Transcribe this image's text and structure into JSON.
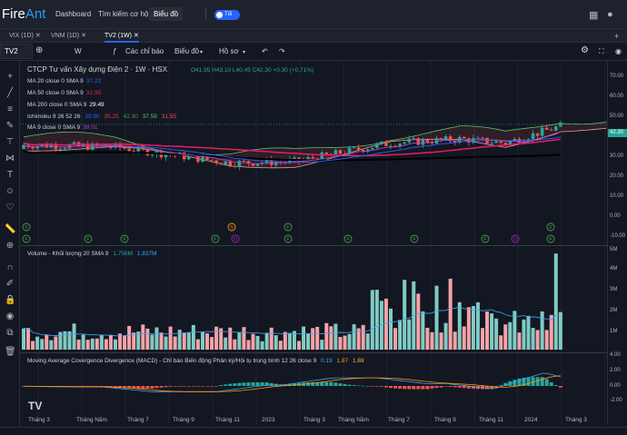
{
  "nav": {
    "logo_fire": "Fire",
    "logo_ant": "Ant",
    "dashboard": "Dashboard",
    "search_opportunity": "Tìm kiếm cơ hội",
    "chart": "Biểu đồ",
    "toggle_label": "Tối"
  },
  "tabs": [
    {
      "label": "VIX (1D)"
    },
    {
      "label": "VNM (1D)"
    },
    {
      "label": "TV2 (1W)"
    }
  ],
  "toolbar": {
    "symbol": "TV2",
    "interval": "W",
    "indicators": "Các chỉ báo",
    "chart_type": "Biểu đồ",
    "profile": "Hồ sơ"
  },
  "chart": {
    "title": "CTCP Tư vấn Xây dựng Điện 2 · 1W · HSX",
    "ohlc": {
      "o": "O41.95",
      "h": "H43.10",
      "l": "L40.45",
      "c": "C42.30",
      "chg": "+0.30 (+0.71%)"
    },
    "legend": [
      {
        "name": "MA 20 close 0 SMA 9",
        "values": [
          "37.22"
        ],
        "color": "#2962ff"
      },
      {
        "name": "MA 50 close 0 SMA 9",
        "values": [
          "32.95"
        ],
        "color": "#e91e63"
      },
      {
        "name": "MA 200 close 0 SMA 9",
        "values": [
          "29.49"
        ],
        "color": "#ffffff"
      },
      {
        "name": "Ichimoku 9 26 52 26",
        "values": [
          "39.90",
          "35.25",
          "42.30",
          "37.58",
          "31.55"
        ],
        "colors": [
          "#2962ff",
          "#b71c1c",
          "#43a047",
          "#a5d6a7",
          "#ef9a9a"
        ]
      },
      {
        "name": "MA 9 close 0 SMA 9",
        "values": [
          "38.01"
        ],
        "color": "#9c27b0"
      }
    ],
    "volume_legend": {
      "name": "Volume - Khối lượng 20 SMA 9",
      "v1": "1.756M",
      "v2": "1.837M"
    },
    "macd_legend": {
      "name": "Moving Average Covergence Divergence (MACD) - Chỉ báo Biến động Phân kỳ/Hội tụ trung bình 12 26 close 9",
      "v1": "0.19",
      "v2": "1.87",
      "v3": "1.69"
    },
    "price_axis": [
      "70.00",
      "60.00",
      "50.00",
      "40.00",
      "30.00",
      "20.00",
      "10.00",
      "0.00",
      "-10.00"
    ],
    "last_price": "42.30",
    "volume_axis": [
      "5M",
      "4M",
      "3M",
      "2M",
      "1M"
    ],
    "macd_axis": [
      "4.00",
      "2.00",
      "0.00",
      "-2.00"
    ],
    "x_labels": [
      "Tháng 3",
      "Tháng Năm",
      "Tháng 7",
      "Tháng 9",
      "Tháng 11",
      "2023",
      "Tháng 3",
      "Tháng Năm",
      "Tháng 7",
      "Tháng 9",
      "Tháng 11",
      "2024",
      "Tháng 3"
    ]
  }
}
